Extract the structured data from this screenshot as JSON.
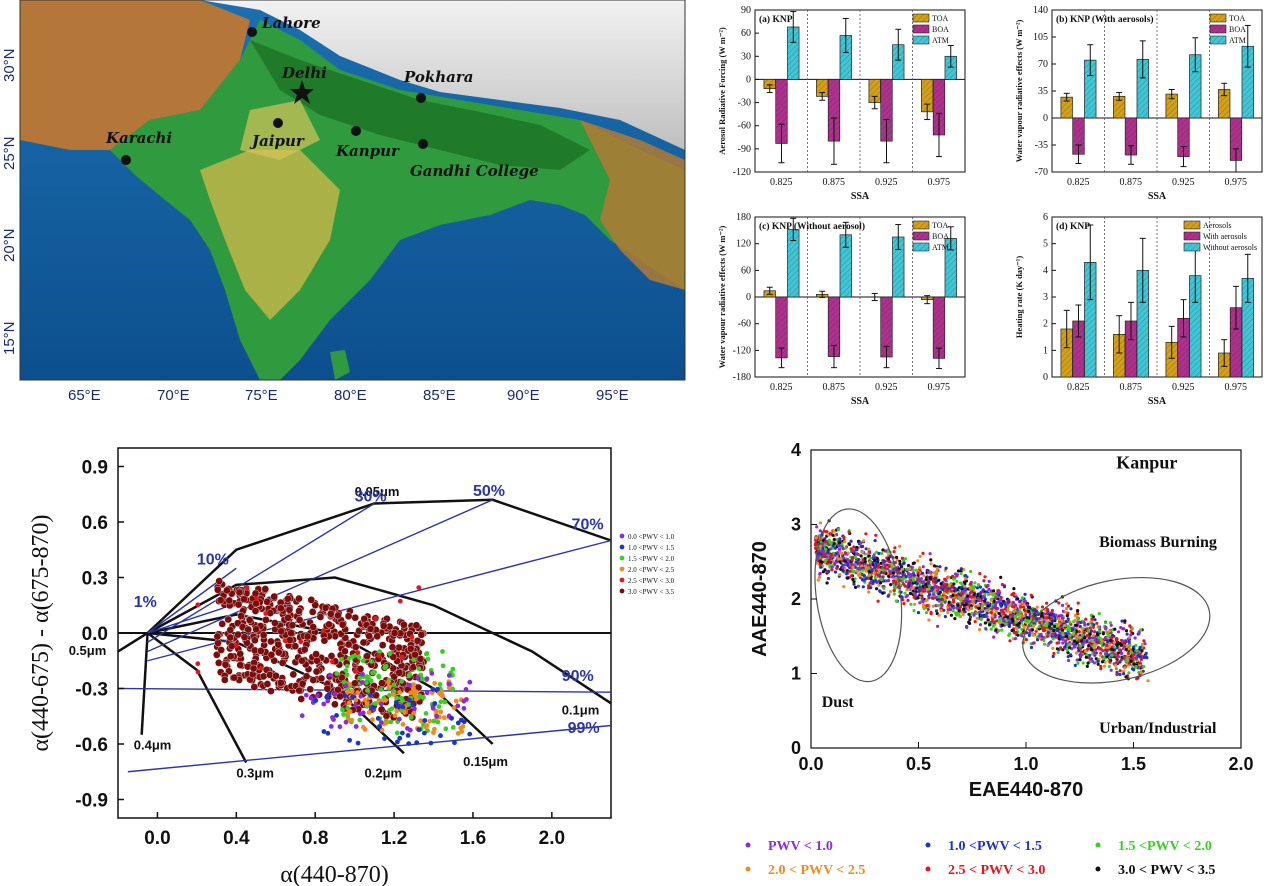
{
  "map": {
    "cities": [
      {
        "name": "Lahore"
      },
      {
        "name": "Delhi"
      },
      {
        "name": "Pokhara"
      },
      {
        "name": "Jaipur"
      },
      {
        "name": "Kanpur"
      },
      {
        "name": "Karachi"
      },
      {
        "name": "Gandhi College"
      }
    ],
    "lon_labels": [
      "65°E",
      "70°E",
      "75°E",
      "80°E",
      "85°E",
      "90°E",
      "95°E"
    ],
    "lat_labels": [
      "30°N",
      "25°N",
      "20°N",
      "15°N"
    ]
  },
  "chart_data": [
    {
      "type": "bar",
      "title": "(a) KNP",
      "xlabel": "SSA",
      "ylabel": "Aerosol Radiative Forcing (W m⁻²)",
      "categories": [
        "0.825",
        "0.875",
        "0.925",
        "0.975"
      ],
      "ylim": [
        -120,
        90
      ],
      "yticks": [
        -120,
        -90,
        -60,
        -30,
        0,
        30,
        60,
        90
      ],
      "series": [
        {
          "name": "TOA",
          "values": [
            -12,
            -22,
            -30,
            -42
          ],
          "errors": [
            5,
            5,
            8,
            10
          ],
          "color": "#d4a017"
        },
        {
          "name": "BOA",
          "values": [
            -83,
            -80,
            -80,
            -72
          ],
          "errors": [
            25,
            30,
            28,
            28
          ],
          "color": "#b0308e"
        },
        {
          "name": "ATM",
          "values": [
            68,
            57,
            45,
            30
          ],
          "errors": [
            20,
            22,
            20,
            14
          ],
          "color": "#3fc7d8"
        }
      ]
    },
    {
      "type": "bar",
      "title": "(b) KNP (With aerosols)",
      "xlabel": "SSA",
      "ylabel": "Water vapour radiative effects (W m⁻²)",
      "categories": [
        "0.825",
        "0.875",
        "0.925",
        "0.975"
      ],
      "ylim": [
        -70,
        140
      ],
      "yticks": [
        -70,
        -35,
        0,
        35,
        70,
        105,
        140
      ],
      "series": [
        {
          "name": "TOA",
          "values": [
            27,
            28,
            31,
            37
          ],
          "errors": [
            5,
            5,
            6,
            8
          ],
          "color": "#d4a017"
        },
        {
          "name": "BOA",
          "values": [
            -47,
            -48,
            -50,
            -55
          ],
          "errors": [
            12,
            12,
            13,
            15
          ],
          "color": "#b0308e"
        },
        {
          "name": "ATM",
          "values": [
            75,
            76,
            82,
            93
          ],
          "errors": [
            20,
            24,
            22,
            27
          ],
          "color": "#3fc7d8"
        }
      ]
    },
    {
      "type": "bar",
      "title": "(c) KNP (Without aerosol)",
      "xlabel": "SSA",
      "ylabel": "Water vapour radiative effects (W m⁻²)",
      "categories": [
        "0.825",
        "0.875",
        "0.925",
        "0.975"
      ],
      "ylim": [
        -180,
        180
      ],
      "yticks": [
        -180,
        -120,
        -60,
        0,
        60,
        120,
        180
      ],
      "series": [
        {
          "name": "TOA",
          "values": [
            14,
            6,
            0,
            -6
          ],
          "errors": [
            8,
            7,
            8,
            9
          ],
          "color": "#d4a017"
        },
        {
          "name": "BOA",
          "values": [
            -137,
            -134,
            -135,
            -138
          ],
          "errors": [
            22,
            25,
            24,
            23
          ],
          "color": "#b0308e"
        },
        {
          "name": "ATM",
          "values": [
            152,
            140,
            135,
            132
          ],
          "errors": [
            25,
            28,
            28,
            26
          ],
          "color": "#3fc7d8"
        }
      ]
    },
    {
      "type": "bar",
      "title": "(d) KNP",
      "xlabel": "SSA",
      "ylabel": "Heating rate (K day⁻¹)",
      "categories": [
        "0.825",
        "0.875",
        "0.925",
        "0.975"
      ],
      "ylim": [
        0,
        6
      ],
      "yticks": [
        0,
        1,
        2,
        3,
        4,
        5,
        6
      ],
      "series": [
        {
          "name": "Aerosols",
          "values": [
            1.8,
            1.6,
            1.3,
            0.9
          ],
          "errors": [
            0.7,
            0.7,
            0.6,
            0.5
          ],
          "color": "#d4a017"
        },
        {
          "name": "With aerosols",
          "values": [
            2.1,
            2.1,
            2.2,
            2.6
          ],
          "errors": [
            0.6,
            0.7,
            0.7,
            0.8
          ],
          "color": "#b0308e"
        },
        {
          "name": "Without aerosols",
          "values": [
            4.3,
            4.0,
            3.8,
            3.7
          ],
          "errors": [
            1.4,
            1.2,
            1.0,
            0.9
          ],
          "color": "#3fc7d8"
        }
      ]
    },
    {
      "type": "scatter",
      "xlabel": "α(440-870)",
      "ylabel": "α(440-675) - α(675-870)",
      "xlim": [
        -0.2,
        2.3
      ],
      "ylim": [
        -1.0,
        1.0
      ],
      "xticks": [
        "0.0",
        "0.4",
        "0.8",
        "1.2",
        "1.6",
        "2.0"
      ],
      "yticks": [
        "0.9",
        "0.6",
        "0.3",
        "0.0",
        "-0.3",
        "-0.6",
        "-0.9"
      ],
      "fine_mode_fractions": [
        "1%",
        "10%",
        "30%",
        "50%",
        "70%",
        "90%",
        "99%"
      ],
      "fine_mode_radii": [
        "0.05μm",
        "0.1μm",
        "0.15μm",
        "0.2μm",
        "0.3μm",
        "0.4μm",
        "0.5μm"
      ],
      "series": [
        {
          "name": "0.0 <PWV < 1.0",
          "color": "#8a2be2"
        },
        {
          "name": "1.0 <PWV < 1.5",
          "color": "#1a35c8"
        },
        {
          "name": "1.5 <PWV < 2.0",
          "color": "#36d11f"
        },
        {
          "name": "2.0 <PWV < 2.5",
          "color": "#f08a1e"
        },
        {
          "name": "2.5 <PWV < 3.0",
          "color": "#e2161e"
        },
        {
          "name": "3.0 <PWV < 3.5",
          "color": "#7a0c0c"
        }
      ]
    },
    {
      "type": "scatter",
      "title": "Kanpur",
      "xlabel": "EAE440-870",
      "ylabel": "AAE440-870",
      "xlim": [
        0.0,
        2.0
      ],
      "ylim": [
        0,
        4
      ],
      "xticks": [
        "0.0",
        "0.5",
        "1.0",
        "1.5",
        "2.0"
      ],
      "yticks": [
        "0",
        "1",
        "2",
        "3",
        "4"
      ],
      "annotations": [
        "Dust",
        "Biomass Burning",
        "Urban/Industrial"
      ],
      "series": [
        {
          "name": "PWV < 1.0",
          "color": "#8a2be2"
        },
        {
          "name": "1.0 <PWV < 1.5",
          "color": "#1a35c8"
        },
        {
          "name": "1.5 <PWV < 2.0",
          "color": "#36d11f"
        },
        {
          "name": "2.0 < PWV < 2.5",
          "color": "#f08a1e"
        },
        {
          "name": "2.5 < PWV < 3.0",
          "color": "#e2161e"
        },
        {
          "name": "3.0 < PWV < 3.5",
          "color": "#111111"
        }
      ]
    }
  ]
}
